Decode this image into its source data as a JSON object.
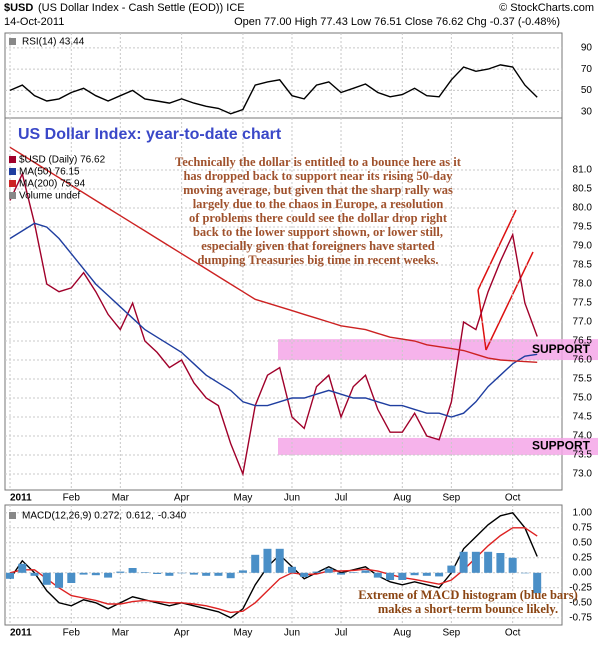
{
  "header": {
    "symbol": "$USD",
    "description": "(US Dollar Index - Cash Settle (EOD)) ICE",
    "date": "14-Oct-2011",
    "copyright": "© StockCharts.com",
    "quote": "Open 77.00 High 77.43 Low 76.51 Close 76.62 Chg -0.37 (-0.48%)"
  },
  "chart_data": [
    {
      "type": "line",
      "grid": true,
      "categories": [
        "2011",
        null,
        null,
        null,
        null,
        "Feb",
        null,
        null,
        null,
        "Mar",
        null,
        null,
        null,
        null,
        "Apr",
        null,
        null,
        null,
        null,
        "May",
        null,
        null,
        null,
        "Jun",
        null,
        null,
        null,
        "Jul",
        null,
        null,
        null,
        null,
        "Aug",
        null,
        null,
        null,
        "Sep",
        null,
        null,
        null,
        null,
        "Oct",
        null,
        null
      ],
      "ylim": [
        24,
        104
      ],
      "yticks": [
        30,
        50,
        70,
        90
      ],
      "series": [
        {
          "name": "RSI(14) 43.44",
          "color": "#000000",
          "values": [
            50,
            55,
            45,
            40,
            42,
            48,
            52,
            45,
            40,
            45,
            50,
            42,
            40,
            38,
            42,
            38,
            35,
            33,
            28,
            32,
            55,
            58,
            60,
            45,
            42,
            55,
            58,
            48,
            52,
            56,
            48,
            44,
            46,
            52,
            45,
            44,
            60,
            72,
            68,
            70,
            74,
            72,
            55,
            43.44
          ]
        }
      ]
    },
    {
      "type": "line",
      "grid": true,
      "title": "US Dollar Index: year-to-date chart",
      "annotation_lines": [
        "Technically the dollar is entitled to a bounce here as it",
        "has dropped back to support near its rising 50-day",
        "moving average, but given that the sharp rally was",
        "largely due to the chaos in Europe, a resolution",
        "of problems there could see the dollar drop right",
        "back to the lower support shown, or lower still,",
        "especially given that foreigners have started",
        "dumping Treasuries big time in recent weeks."
      ],
      "legend_extra": "Volume undef",
      "support_zones": [
        {
          "label": "SUPPORT",
          "range": [
            76.0,
            76.55
          ]
        },
        {
          "label": "SUPPORT",
          "range": [
            73.5,
            73.95
          ]
        }
      ],
      "categories": [
        "2011",
        null,
        null,
        null,
        null,
        "Feb",
        null,
        null,
        null,
        "Mar",
        null,
        null,
        null,
        null,
        "Apr",
        null,
        null,
        null,
        null,
        "May",
        null,
        null,
        null,
        "Jun",
        null,
        null,
        null,
        "Jul",
        null,
        null,
        null,
        null,
        "Aug",
        null,
        null,
        null,
        "Sep",
        null,
        null,
        null,
        null,
        "Oct",
        null,
        null
      ],
      "ylim": [
        72.58,
        82.37
      ],
      "yticks": [
        {
          "value": 73,
          "label": "73.0"
        },
        73.5,
        {
          "value": 74,
          "label": "74.0"
        },
        74.5,
        {
          "value": 75,
          "label": "75.0"
        },
        75.5,
        {
          "value": 76,
          "label": "76.0"
        },
        76.5,
        {
          "value": 77,
          "label": "77.0"
        },
        77.5,
        {
          "value": 78,
          "label": "78.0"
        },
        78.5,
        {
          "value": 79,
          "label": "79.0"
        },
        79.5,
        {
          "value": 80,
          "label": "80.0"
        },
        80.5,
        {
          "value": 81,
          "label": "81.0"
        }
      ],
      "series": [
        {
          "name": "$USD (Daily) 76.62",
          "color": "#a0002a",
          "values": [
            80.2,
            80.9,
            79.6,
            78.0,
            77.8,
            77.9,
            78.3,
            77.8,
            77.2,
            76.8,
            77.5,
            76.5,
            76.2,
            75.8,
            76.0,
            75.4,
            75.0,
            74.8,
            73.8,
            73.0,
            74.8,
            75.6,
            75.8,
            74.5,
            74.2,
            75.3,
            75.6,
            74.5,
            75.3,
            75.6,
            74.7,
            74.1,
            74.1,
            74.6,
            74.0,
            73.9,
            74.9,
            77.0,
            76.8,
            77.8,
            78.6,
            79.3,
            77.5,
            76.62
          ]
        },
        {
          "name": "MA(50) 76.15",
          "color": "#1f3ea0",
          "values": [
            79.2,
            79.4,
            79.6,
            79.5,
            79.2,
            78.8,
            78.4,
            78.0,
            77.7,
            77.4,
            77.1,
            76.8,
            76.6,
            76.4,
            76.2,
            75.9,
            75.6,
            75.4,
            75.2,
            74.9,
            74.8,
            74.8,
            74.9,
            75.0,
            75.0,
            75.1,
            75.2,
            75.1,
            75.0,
            75.0,
            74.9,
            74.8,
            74.8,
            74.7,
            74.6,
            74.6,
            74.5,
            74.6,
            74.9,
            75.3,
            75.6,
            75.9,
            76.1,
            76.15
          ]
        },
        {
          "name": "MA(200) 75.94",
          "color": "#cc2222",
          "values": [
            81.6,
            81.4,
            81.2,
            81.0,
            80.8,
            80.6,
            80.4,
            80.2,
            80.0,
            79.8,
            79.6,
            79.4,
            79.2,
            79.0,
            78.8,
            78.6,
            78.4,
            78.2,
            78.0,
            77.8,
            77.6,
            77.5,
            77.4,
            77.3,
            77.2,
            77.1,
            77.0,
            76.9,
            76.85,
            76.8,
            76.7,
            76.6,
            76.55,
            76.5,
            76.4,
            76.35,
            76.3,
            76.25,
            76.15,
            76.05,
            76.0,
            75.98,
            75.96,
            75.94
          ]
        }
      ]
    },
    {
      "type": "line",
      "grid": true,
      "annotation_lines": [
        "Extreme of MACD histogram (blue bars)",
        "makes a short-term bounce likely."
      ],
      "categories": [
        "2011",
        null,
        null,
        null,
        null,
        "Feb",
        null,
        null,
        null,
        "Mar",
        null,
        null,
        null,
        null,
        "Apr",
        null,
        null,
        null,
        null,
        "May",
        null,
        null,
        null,
        "Jun",
        null,
        null,
        null,
        "Jul",
        null,
        null,
        null,
        null,
        "Aug",
        null,
        null,
        null,
        "Sep",
        null,
        null,
        null,
        null,
        "Oct",
        null,
        null
      ],
      "ylim": [
        -0.87,
        1.13
      ],
      "yticks": [
        {
          "value": 1,
          "label": "1.00"
        },
        {
          "value": 0.75,
          "label": "0.75"
        },
        {
          "value": 0.5,
          "label": "0.50"
        },
        {
          "value": 0.25,
          "label": "0.25"
        },
        {
          "value": 0,
          "label": "0.00"
        },
        {
          "value": -0.25,
          "label": "-0.25"
        },
        {
          "value": -0.5,
          "label": "-0.50"
        },
        {
          "value": -0.75,
          "label": "-0.75"
        }
      ],
      "series": [
        {
          "name": "MACD(12,26,9) 0.272,",
          "color": "#000000",
          "values": [
            -0.1,
            0.2,
            0.0,
            -0.3,
            -0.5,
            -0.55,
            -0.45,
            -0.5,
            -0.6,
            -0.5,
            -0.4,
            -0.45,
            -0.5,
            -0.55,
            -0.5,
            -0.55,
            -0.6,
            -0.65,
            -0.75,
            -0.6,
            -0.2,
            0.1,
            0.3,
            0.1,
            -0.1,
            0.0,
            0.1,
            0.0,
            0.05,
            0.1,
            -0.05,
            -0.15,
            -0.2,
            -0.15,
            -0.2,
            -0.25,
            0.0,
            0.4,
            0.6,
            0.8,
            0.95,
            1.0,
            0.75,
            0.272
          ]
        },
        {
          "name": "0.612,",
          "color": "#dd2222",
          "values": [
            0.0,
            0.05,
            0.05,
            -0.1,
            -0.25,
            -0.38,
            -0.42,
            -0.46,
            -0.52,
            -0.52,
            -0.48,
            -0.46,
            -0.48,
            -0.5,
            -0.5,
            -0.52,
            -0.55,
            -0.6,
            -0.66,
            -0.64,
            -0.5,
            -0.3,
            -0.1,
            0.0,
            -0.03,
            -0.02,
            0.03,
            0.03,
            0.04,
            0.06,
            0.03,
            -0.03,
            -0.08,
            -0.11,
            -0.15,
            -0.19,
            -0.12,
            0.05,
            0.25,
            0.45,
            0.62,
            0.75,
            0.75,
            0.612
          ]
        },
        {
          "name": "-0.340",
          "color": "#4a8fc7",
          "type": "bar",
          "values": [
            -0.1,
            0.15,
            -0.05,
            -0.2,
            -0.25,
            -0.17,
            -0.03,
            -0.04,
            -0.08,
            0.02,
            0.08,
            0.01,
            -0.02,
            -0.05,
            0,
            -0.03,
            -0.05,
            -0.05,
            -0.09,
            0.04,
            0.3,
            0.4,
            0.4,
            0.1,
            -0.07,
            0.02,
            0.07,
            -0.03,
            0.01,
            0.04,
            -0.08,
            -0.12,
            -0.12,
            -0.04,
            -0.05,
            -0.06,
            0.12,
            0.35,
            0.35,
            0.35,
            0.33,
            0.25,
            0,
            -0.34
          ]
        }
      ]
    }
  ]
}
